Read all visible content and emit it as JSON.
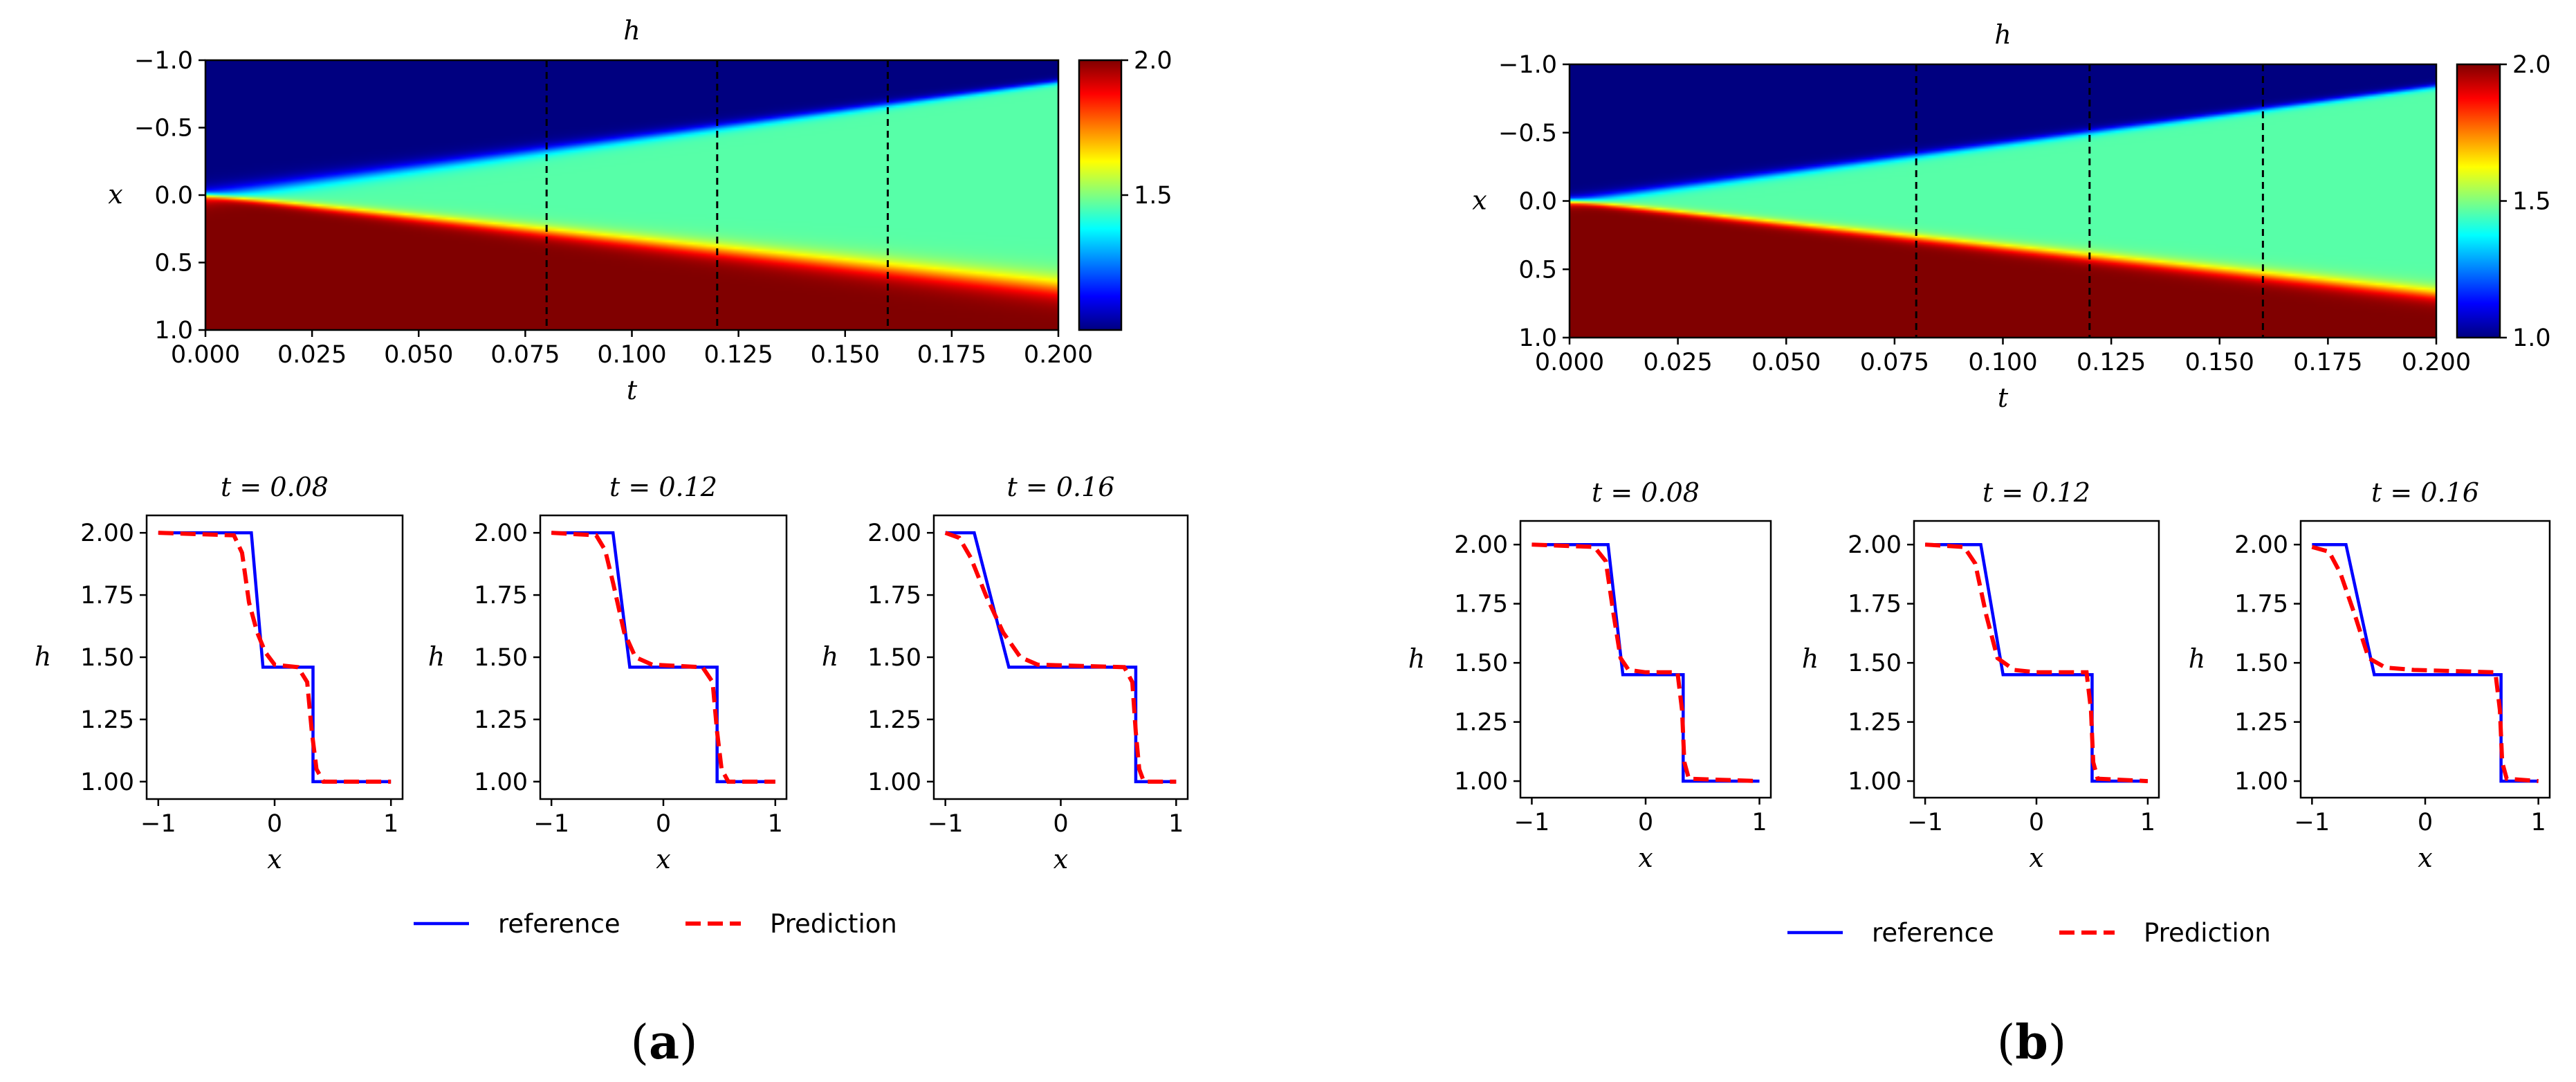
{
  "chart_data": [
    {
      "panel": "a",
      "caption_prefix": "(",
      "caption_letter": "a",
      "caption_suffix": ")",
      "heatmap": {
        "type": "heatmap",
        "title": "h",
        "xlabel": "t",
        "ylabel": "x",
        "xlim": [
          0.0,
          0.2
        ],
        "ylim": [
          -1.0,
          1.0
        ],
        "xticks": [
          "0.000",
          "0.025",
          "0.050",
          "0.075",
          "0.100",
          "0.125",
          "0.150",
          "0.175",
          "0.200"
        ],
        "xtick_values": [
          0.0,
          0.025,
          0.05,
          0.075,
          0.1,
          0.125,
          0.15,
          0.175,
          0.2
        ],
        "yticks": [
          "−1.0",
          "−0.5",
          "0.0",
          "0.5",
          "1.0"
        ],
        "ytick_values": [
          -1.0,
          -0.5,
          0.0,
          0.5,
          1.0
        ],
        "vlines_t": [
          0.08,
          0.12,
          0.16
        ],
        "low_value": 1.0,
        "mid_value": 1.46,
        "high_value": 2.0,
        "upper_front_slope": -4.2,
        "lower_front_slope": 3.4,
        "colorbar": {
          "min": 1.0,
          "max": 2.0,
          "ticks": [
            "2.0",
            "1.5"
          ],
          "tick_values": [
            2.0,
            1.5
          ]
        }
      },
      "slices": [
        {
          "title": "t = 0.08",
          "xlabel": "x",
          "ylabel": "h",
          "xlim": [
            -1.1,
            1.1
          ],
          "ylim": [
            0.93,
            2.07
          ],
          "xticks": [
            "−1",
            "0",
            "1"
          ],
          "xtick_values": [
            -1,
            0,
            1
          ],
          "yticks": [
            "2.00",
            "1.75",
            "1.50",
            "1.25",
            "1.00"
          ],
          "ytick_values": [
            2.0,
            1.75,
            1.5,
            1.25,
            1.0
          ],
          "reference": {
            "x": [
              -1.0,
              -0.2,
              -0.1,
              0.33,
              0.33,
              1.0
            ],
            "y": [
              2.0,
              2.0,
              1.46,
              1.46,
              1.0,
              1.0
            ]
          },
          "prediction": {
            "x": [
              -1.0,
              -0.35,
              -0.28,
              -0.22,
              -0.15,
              -0.08,
              0.0,
              0.2,
              0.28,
              0.32,
              0.36,
              0.42,
              1.0
            ],
            "y": [
              2.0,
              1.99,
              1.92,
              1.72,
              1.6,
              1.52,
              1.47,
              1.46,
              1.4,
              1.2,
              1.05,
              1.0,
              1.0
            ]
          }
        },
        {
          "title": "t = 0.12",
          "xlabel": "x",
          "ylabel": "h",
          "xlim": [
            -1.1,
            1.1
          ],
          "ylim": [
            0.93,
            2.07
          ],
          "xticks": [
            "−1",
            "0",
            "1"
          ],
          "xtick_values": [
            -1,
            0,
            1
          ],
          "yticks": [
            "2.00",
            "1.75",
            "1.50",
            "1.25",
            "1.00"
          ],
          "ytick_values": [
            2.0,
            1.75,
            1.5,
            1.25,
            1.0
          ],
          "reference": {
            "x": [
              -1.0,
              -0.45,
              -0.3,
              0.48,
              0.48,
              1.0
            ],
            "y": [
              2.0,
              2.0,
              1.46,
              1.46,
              1.0,
              1.0
            ]
          },
          "prediction": {
            "x": [
              -1.0,
              -0.6,
              -0.52,
              -0.45,
              -0.35,
              -0.25,
              -0.1,
              0.35,
              0.44,
              0.48,
              0.52,
              0.58,
              1.0
            ],
            "y": [
              2.0,
              1.99,
              1.93,
              1.8,
              1.6,
              1.5,
              1.47,
              1.46,
              1.4,
              1.2,
              1.05,
              1.0,
              1.0
            ]
          }
        },
        {
          "title": "t = 0.16",
          "xlabel": "x",
          "ylabel": "h",
          "xlim": [
            -1.1,
            1.1
          ],
          "ylim": [
            0.93,
            2.07
          ],
          "xticks": [
            "−1",
            "0",
            "1"
          ],
          "xtick_values": [
            -1,
            0,
            1
          ],
          "yticks": [
            "2.00",
            "1.75",
            "1.50",
            "1.25",
            "1.00"
          ],
          "ytick_values": [
            2.0,
            1.75,
            1.5,
            1.25,
            1.0
          ],
          "reference": {
            "x": [
              -1.0,
              -0.75,
              -0.45,
              0.65,
              0.65,
              1.0
            ],
            "y": [
              2.0,
              2.0,
              1.46,
              1.46,
              1.0,
              1.0
            ]
          },
          "prediction": {
            "x": [
              -1.0,
              -0.88,
              -0.78,
              -0.65,
              -0.5,
              -0.35,
              -0.2,
              0.55,
              0.62,
              0.65,
              0.68,
              0.72,
              1.0
            ],
            "y": [
              2.0,
              1.98,
              1.9,
              1.75,
              1.6,
              1.5,
              1.47,
              1.46,
              1.4,
              1.2,
              1.05,
              1.0,
              1.0
            ]
          }
        }
      ],
      "legend": {
        "entries": [
          "reference",
          "Prediction"
        ],
        "colors": [
          "#0000ff",
          "#ff0000"
        ]
      }
    },
    {
      "panel": "b",
      "caption_prefix": "(",
      "caption_letter": "b",
      "caption_suffix": ")",
      "heatmap": {
        "type": "heatmap",
        "title": "h",
        "xlabel": "t",
        "ylabel": "x",
        "xlim": [
          0.0,
          0.2
        ],
        "ylim": [
          -1.0,
          1.0
        ],
        "xticks": [
          "0.000",
          "0.025",
          "0.050",
          "0.075",
          "0.100",
          "0.125",
          "0.150",
          "0.175",
          "0.200"
        ],
        "xtick_values": [
          0.0,
          0.025,
          0.05,
          0.075,
          0.1,
          0.125,
          0.15,
          0.175,
          0.2
        ],
        "yticks": [
          "−1.0",
          "−0.5",
          "0.0",
          "0.5",
          "1.0"
        ],
        "ytick_values": [
          -1.0,
          -0.5,
          0.0,
          0.5,
          1.0
        ],
        "vlines_t": [
          0.08,
          0.12,
          0.16
        ],
        "low_value": 1.0,
        "mid_value": 1.46,
        "high_value": 2.0,
        "upper_front_slope": -4.2,
        "lower_front_slope": 3.4,
        "colorbar": {
          "min": 1.0,
          "max": 2.0,
          "ticks": [
            "2.0",
            "1.5",
            "1.0"
          ],
          "tick_values": [
            2.0,
            1.5,
            1.0
          ]
        }
      },
      "slices": [
        {
          "title": "t = 0.08",
          "xlabel": "x",
          "ylabel": "h",
          "xlim": [
            -1.1,
            1.1
          ],
          "ylim": [
            0.93,
            2.1
          ],
          "xticks": [
            "−1",
            "0",
            "1"
          ],
          "xtick_values": [
            -1,
            0,
            1
          ],
          "yticks": [
            "2.00",
            "1.75",
            "1.50",
            "1.25",
            "1.00"
          ],
          "ytick_values": [
            2.0,
            1.75,
            1.5,
            1.25,
            1.0
          ],
          "reference": {
            "x": [
              -1.0,
              -0.33,
              -0.2,
              0.33,
              0.33,
              1.0
            ],
            "y": [
              2.0,
              2.0,
              1.45,
              1.45,
              1.0,
              1.0
            ]
          },
          "prediction": {
            "x": [
              -1.0,
              -0.45,
              -0.35,
              -0.28,
              -0.22,
              -0.15,
              0.0,
              0.28,
              0.32,
              0.34,
              0.38,
              1.0
            ],
            "y": [
              2.0,
              1.99,
              1.93,
              1.7,
              1.52,
              1.47,
              1.46,
              1.46,
              1.3,
              1.08,
              1.01,
              1.0
            ]
          }
        },
        {
          "title": "t = 0.12",
          "xlabel": "x",
          "ylabel": "h",
          "xlim": [
            -1.1,
            1.1
          ],
          "ylim": [
            0.93,
            2.1
          ],
          "xticks": [
            "−1",
            "0",
            "1"
          ],
          "xtick_values": [
            -1,
            0,
            1
          ],
          "yticks": [
            "2.00",
            "1.75",
            "1.50",
            "1.25",
            "1.00"
          ],
          "ytick_values": [
            2.0,
            1.75,
            1.5,
            1.25,
            1.0
          ],
          "reference": {
            "x": [
              -1.0,
              -0.5,
              -0.3,
              0.5,
              0.5,
              1.0
            ],
            "y": [
              2.0,
              2.0,
              1.45,
              1.45,
              1.0,
              1.0
            ]
          },
          "prediction": {
            "x": [
              -1.0,
              -0.65,
              -0.55,
              -0.45,
              -0.35,
              -0.2,
              0.0,
              0.45,
              0.49,
              0.51,
              0.55,
              1.0
            ],
            "y": [
              2.0,
              1.99,
              1.92,
              1.7,
              1.52,
              1.47,
              1.46,
              1.46,
              1.3,
              1.08,
              1.01,
              1.0
            ]
          }
        },
        {
          "title": "t = 0.16",
          "xlabel": "x",
          "ylabel": "h",
          "xlim": [
            -1.1,
            1.1
          ],
          "ylim": [
            0.93,
            2.1
          ],
          "xticks": [
            "−1",
            "0",
            "1"
          ],
          "xtick_values": [
            -1,
            0,
            1
          ],
          "yticks": [
            "2.00",
            "1.75",
            "1.50",
            "1.25",
            "1.00"
          ],
          "ytick_values": [
            2.0,
            1.75,
            1.5,
            1.25,
            1.0
          ],
          "reference": {
            "x": [
              -1.0,
              -0.7,
              -0.45,
              0.67,
              0.67,
              1.0
            ],
            "y": [
              2.0,
              2.0,
              1.45,
              1.45,
              1.0,
              1.0
            ]
          },
          "prediction": {
            "x": [
              -1.0,
              -0.85,
              -0.75,
              -0.62,
              -0.5,
              -0.35,
              -0.1,
              0.62,
              0.66,
              0.68,
              0.72,
              1.0
            ],
            "y": [
              1.99,
              1.97,
              1.88,
              1.7,
              1.52,
              1.48,
              1.47,
              1.46,
              1.3,
              1.08,
              1.01,
              1.0
            ]
          }
        }
      ],
      "legend": {
        "entries": [
          "reference",
          "Prediction"
        ],
        "colors": [
          "#0000ff",
          "#ff0000"
        ]
      }
    }
  ]
}
